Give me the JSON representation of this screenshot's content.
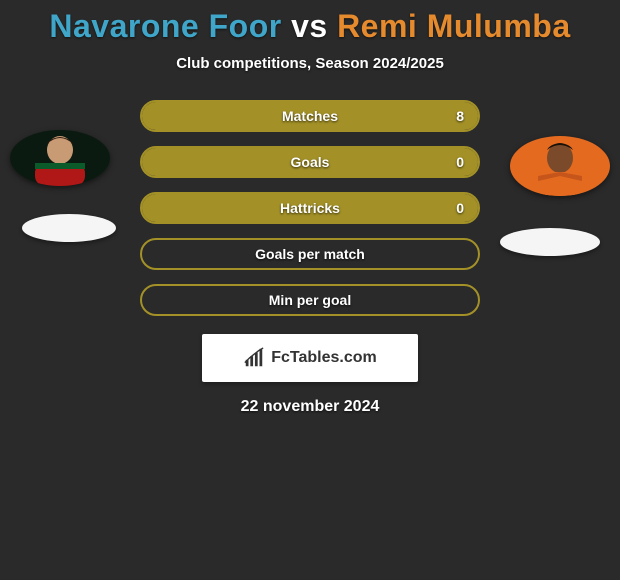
{
  "colors": {
    "background": "#2a2a2a",
    "player1": "#3fa6c9",
    "player2": "#e68a2e",
    "vs": "#ffffff",
    "subtitle": "#ffffff",
    "bar_border": "#a39127",
    "bar_fill": "#a39127",
    "bar_text": "#ffffff",
    "date": "#ffffff",
    "branding_bg": "#ffffff",
    "branding_text": "#333333"
  },
  "title": {
    "player1": "Navarone Foor",
    "vs": "vs",
    "player2": "Remi Mulumba"
  },
  "subtitle": "Club competitions, Season 2024/2025",
  "bars": [
    {
      "label": "Matches",
      "value": "8",
      "fill_pct": 100
    },
    {
      "label": "Goals",
      "value": "0",
      "fill_pct": 100
    },
    {
      "label": "Hattricks",
      "value": "0",
      "fill_pct": 100
    },
    {
      "label": "Goals per match",
      "value": "",
      "fill_pct": 0
    },
    {
      "label": "Min per goal",
      "value": "",
      "fill_pct": 0
    }
  ],
  "branding": {
    "text": "FcTables.com",
    "icon": "chart-icon"
  },
  "date": "22 november 2024",
  "avatars": {
    "left": {
      "name": "player1-avatar"
    },
    "right": {
      "name": "player2-avatar"
    }
  }
}
